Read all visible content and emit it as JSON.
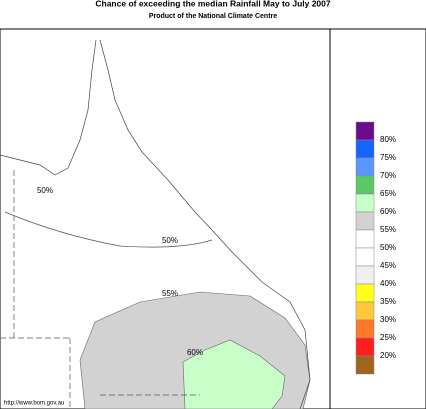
{
  "header": {
    "title": "Chance of exceeding the median Rainfall May to July 2007",
    "subtitle": "Product of the National Climate Centre"
  },
  "legend": {
    "labels": [
      "80%",
      "75%",
      "70%",
      "65%",
      "60%",
      "55%",
      "50%",
      "45%",
      "40%",
      "35%",
      "30%",
      "25%",
      "20%"
    ],
    "colors": [
      "#6a0a8c",
      "#1464ff",
      "#5a96ff",
      "#5ac864",
      "#c8ffc8",
      "#d2d2d2",
      "#ffffff",
      "#ffffff",
      "#f0f0f0",
      "#ffff1e",
      "#ffc83c",
      "#ff7828",
      "#ff1e1e",
      "#a0641e"
    ]
  },
  "map": {
    "contour_labels": [
      "50%",
      "50%",
      "55%",
      "60%"
    ],
    "fill_55": "#d2d2d2",
    "fill_60": "#c8ffc8"
  },
  "footer": {
    "url": "http://www.bom.gov.au"
  }
}
